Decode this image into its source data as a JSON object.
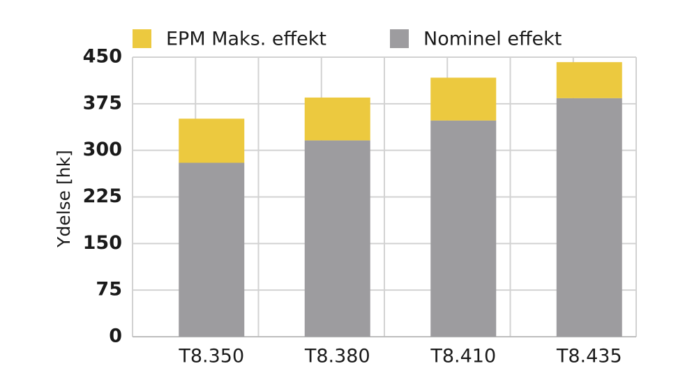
{
  "chart_data": {
    "type": "bar",
    "stacked": true,
    "categories": [
      "T8.350",
      "T8.380",
      "T8.410",
      "T8.435"
    ],
    "series": [
      {
        "name": "Nominel effekt",
        "values": [
          280,
          316,
          348,
          384
        ],
        "color": "#9d9c9f"
      },
      {
        "name": "EPM Maks. effekt",
        "values": [
          71,
          69,
          69,
          58
        ],
        "color": "#ecc93f"
      }
    ],
    "totals": [
      351,
      385,
      417,
      442
    ],
    "ylabel": "Ydelse [hk]",
    "xlabel": "",
    "ylim": [
      0,
      450
    ],
    "yticks": [
      0,
      75,
      150,
      225,
      300,
      375,
      450
    ],
    "grid": true,
    "legend": {
      "placement": "top",
      "items": [
        {
          "label": "EPM Maks. effekt",
          "color": "#ecc93f"
        },
        {
          "label": "Nominel effekt",
          "color": "#9d9c9f"
        }
      ]
    }
  }
}
